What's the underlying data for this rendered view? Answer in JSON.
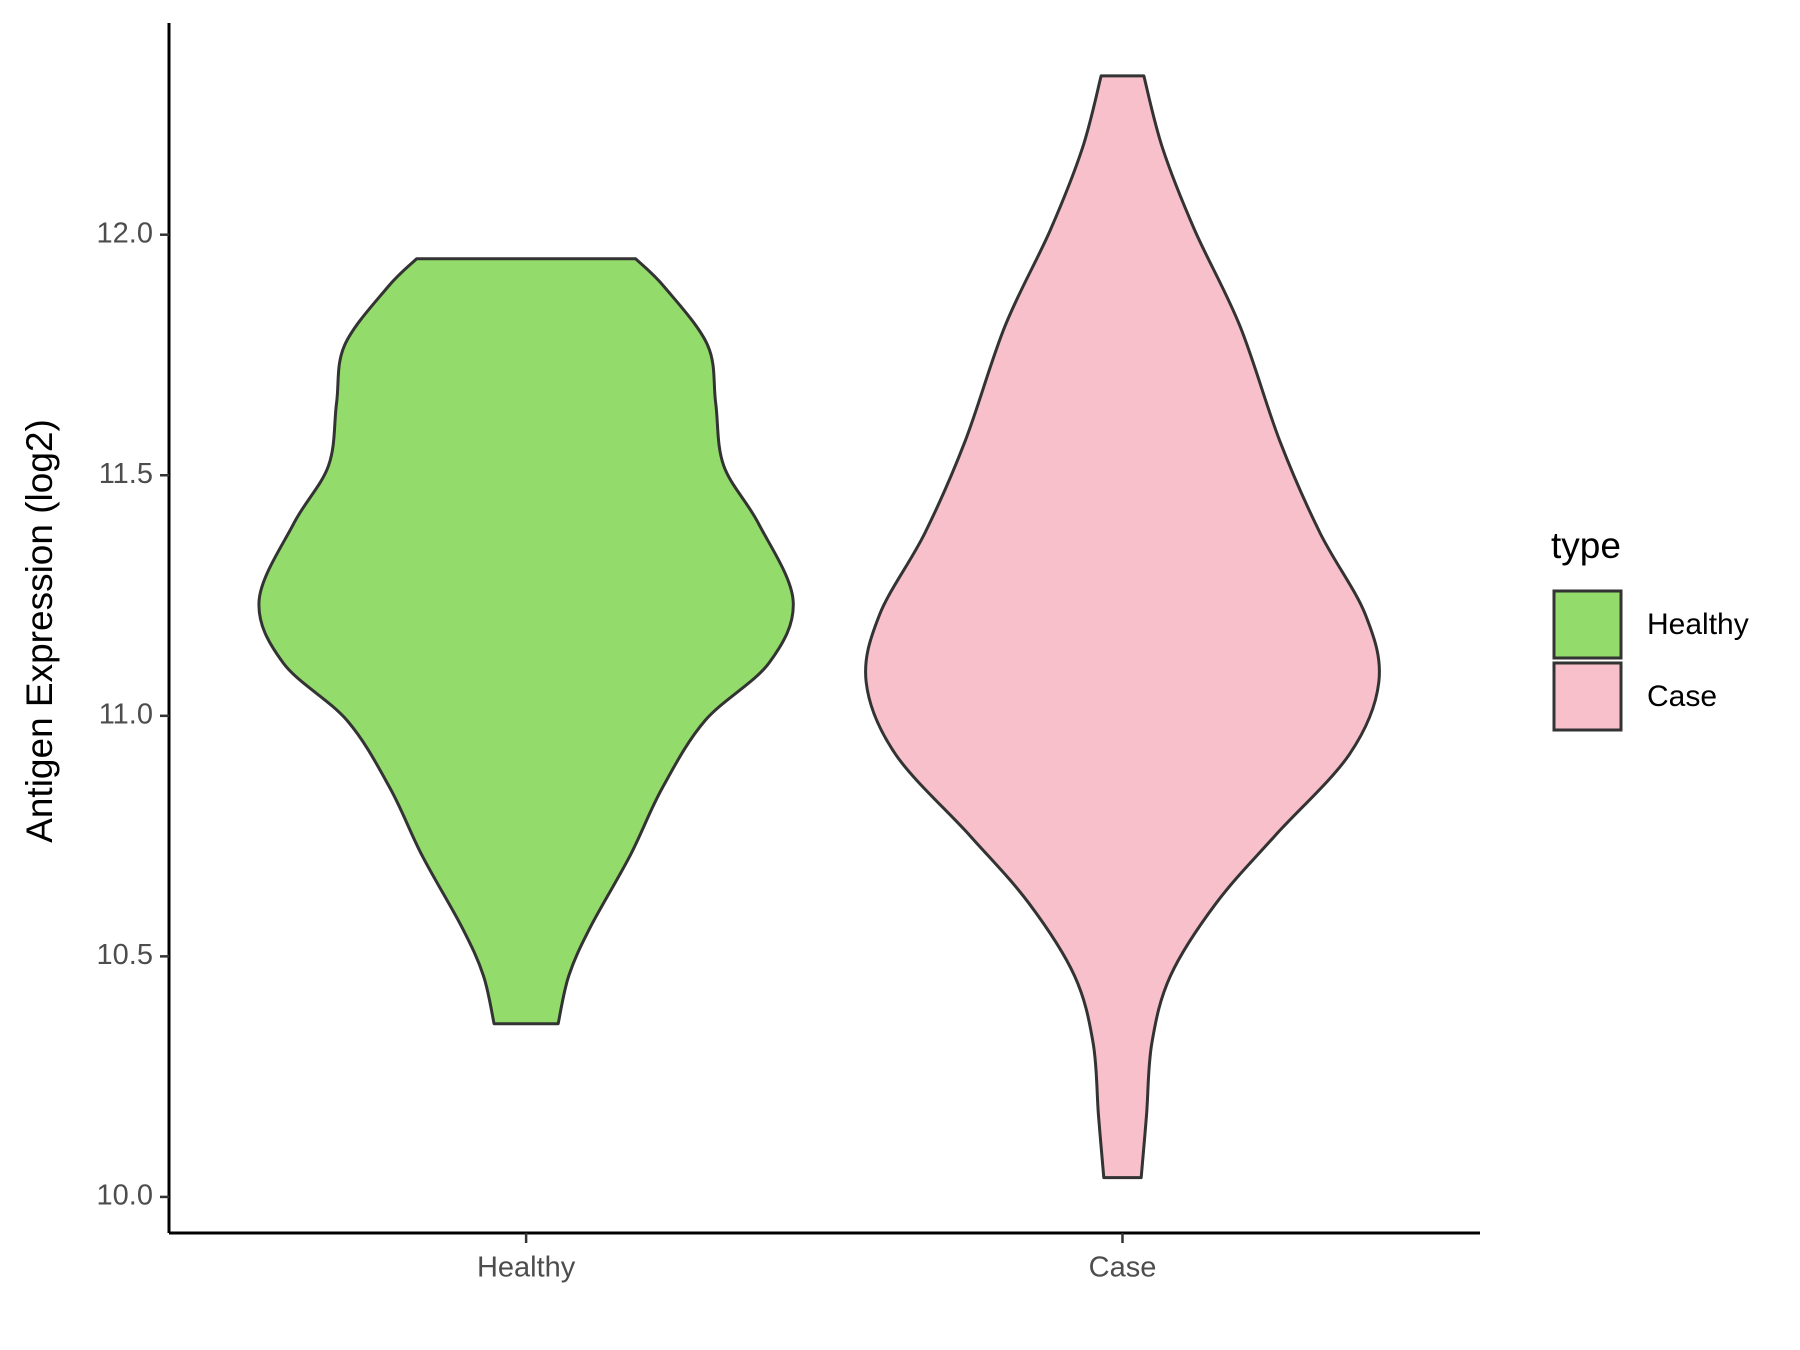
{
  "chart_data": {
    "type": "violin",
    "y_label": "Antigen Expression (log2)",
    "categories": [
      "Healthy",
      "Case"
    ],
    "series": [
      {
        "name": "Healthy",
        "color": "#93dc6b",
        "y": [
          11.95,
          11.89,
          11.77,
          11.65,
          11.52,
          11.4,
          11.24,
          11.11,
          10.99,
          10.85,
          10.71,
          10.56,
          10.46,
          10.36
        ],
        "width": [
          0.41,
          0.52,
          0.68,
          0.71,
          0.74,
          0.87,
          1.0,
          0.91,
          0.67,
          0.51,
          0.39,
          0.24,
          0.16,
          0.12
        ]
      },
      {
        "name": "Case",
        "color": "#f7c0cb",
        "y": [
          12.33,
          12.18,
          12.01,
          11.81,
          11.57,
          11.38,
          11.21,
          11.07,
          10.92,
          10.75,
          10.61,
          10.46,
          10.32,
          10.17,
          10.04
        ],
        "width": [
          0.08,
          0.15,
          0.27,
          0.44,
          0.59,
          0.74,
          0.91,
          0.96,
          0.85,
          0.57,
          0.35,
          0.18,
          0.11,
          0.09,
          0.07
        ]
      }
    ],
    "ylim": [
      9.925,
      12.44
    ],
    "yticks": [
      {
        "value": 10,
        "label": "10.0"
      },
      {
        "value": 10.5,
        "label": "10.5"
      },
      {
        "value": 11,
        "label": "11.0"
      },
      {
        "value": 11.5,
        "label": "11.5"
      },
      {
        "value": 12,
        "label": "12.0"
      }
    ],
    "legend_title": "type",
    "legend_position": "right"
  }
}
